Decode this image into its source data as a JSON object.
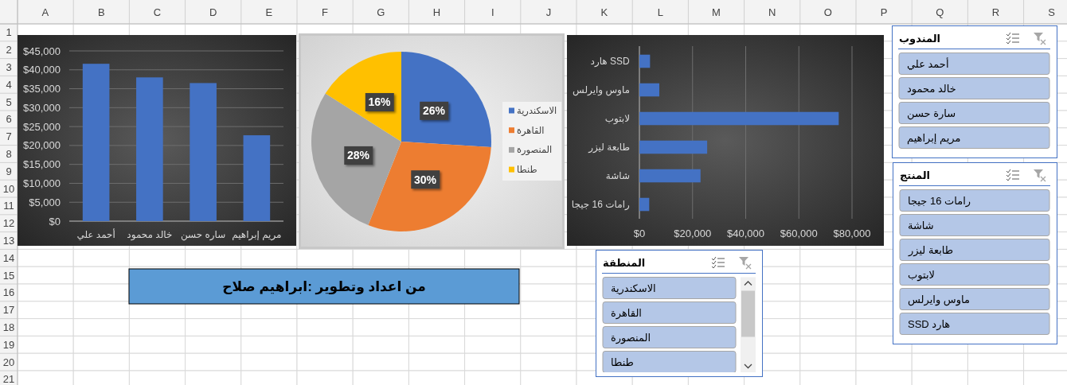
{
  "chart_data": [
    {
      "type": "heatmap",
      "categories": [
        "A",
        "B",
        "C",
        "D",
        "E",
        "F",
        "G",
        "H",
        "I",
        "J",
        "K",
        "L",
        "M",
        "N",
        "O",
        "P",
        "Q",
        "R",
        "S"
      ],
      "y_categories": [
        "1",
        "2",
        "3",
        "4",
        "5",
        "6",
        "7",
        "8",
        "9",
        "10",
        "11",
        "12",
        "13",
        "14",
        "15",
        "16",
        "17",
        "18",
        "19",
        "20",
        "21"
      ],
      "cells": [
        [
          null,
          null,
          null,
          null,
          null,
          null,
          null,
          null,
          null,
          null,
          null,
          null,
          null,
          null,
          null,
          null,
          null,
          null,
          null
        ],
        [
          null,
          null,
          null,
          null,
          null,
          null,
          null,
          null,
          null,
          null,
          null,
          null,
          null,
          null,
          null,
          null,
          null,
          null,
          null
        ],
        [
          null,
          null,
          null,
          null,
          null,
          null,
          null,
          null,
          null,
          null,
          null,
          null,
          null,
          null,
          null,
          null,
          null,
          null,
          null
        ],
        [
          null,
          null,
          null,
          null,
          null,
          null,
          null,
          null,
          null,
          null,
          null,
          null,
          null,
          null,
          null,
          null,
          null,
          null,
          null
        ],
        [
          null,
          null,
          null,
          null,
          null,
          null,
          null,
          null,
          null,
          null,
          null,
          null,
          null,
          null,
          null,
          null,
          null,
          null,
          null
        ],
        [
          null,
          null,
          null,
          null,
          null,
          null,
          null,
          null,
          null,
          null,
          null,
          null,
          null,
          null,
          null,
          null,
          null,
          null,
          null
        ],
        [
          null,
          null,
          null,
          null,
          null,
          null,
          null,
          null,
          null,
          null,
          null,
          null,
          null,
          null,
          null,
          null,
          null,
          null,
          null
        ],
        [
          null,
          null,
          null,
          null,
          null,
          null,
          null,
          null,
          null,
          null,
          null,
          null,
          null,
          null,
          null,
          null,
          null,
          null,
          null
        ],
        [
          null,
          null,
          null,
          null,
          null,
          null,
          null,
          null,
          null,
          null,
          null,
          null,
          null,
          null,
          null,
          null,
          null,
          null,
          null
        ],
        [
          null,
          null,
          null,
          null,
          null,
          null,
          null,
          null,
          null,
          null,
          null,
          null,
          null,
          null,
          null,
          null,
          null,
          null,
          null
        ],
        [
          null,
          null,
          null,
          null,
          null,
          null,
          null,
          null,
          null,
          null,
          null,
          null,
          null,
          null,
          null,
          null,
          null,
          null,
          null
        ],
        [
          null,
          null,
          null,
          null,
          null,
          null,
          null,
          null,
          null,
          null,
          null,
          null,
          null,
          null,
          null,
          null,
          null,
          null,
          null
        ],
        [
          null,
          null,
          null,
          null,
          null,
          null,
          null,
          null,
          null,
          null,
          null,
          null,
          null,
          null,
          null,
          null,
          null,
          null,
          null
        ],
        [
          null,
          null,
          null,
          null,
          null,
          null,
          null,
          null,
          null,
          null,
          null,
          null,
          null,
          null,
          null,
          null,
          null,
          null,
          null
        ],
        [
          null,
          null,
          null,
          null,
          null,
          null,
          null,
          null,
          null,
          null,
          null,
          null,
          null,
          null,
          null,
          null,
          null,
          null,
          null
        ],
        [
          null,
          null,
          null,
          null,
          null,
          null,
          null,
          null,
          null,
          null,
          null,
          null,
          null,
          null,
          null,
          null,
          null,
          null,
          null
        ],
        [
          null,
          null,
          null,
          null,
          null,
          null,
          null,
          null,
          null,
          null,
          null,
          null,
          null,
          null,
          null,
          null,
          null,
          null,
          null
        ],
        [
          null,
          null,
          null,
          null,
          null,
          null,
          null,
          null,
          null,
          null,
          null,
          null,
          null,
          null,
          null,
          null,
          null,
          null,
          null
        ],
        [
          null,
          null,
          null,
          null,
          null,
          null,
          null,
          null,
          null,
          null,
          null,
          null,
          null,
          null,
          null,
          null,
          null,
          null,
          null
        ],
        [
          null,
          null,
          null,
          null,
          null,
          null,
          null,
          null,
          null,
          null,
          null,
          null,
          null,
          null,
          null,
          null,
          null,
          null,
          null
        ],
        [
          null,
          null,
          null,
          null,
          null,
          null,
          null,
          null,
          null,
          null,
          null,
          null,
          null,
          null,
          null,
          null,
          null,
          null,
          null
        ]
      ],
      "annotations": [
        "من اعداد وتطوير :ابراهيم صلاح"
      ]
    },
    {
      "type": "bar",
      "categories": [
        "أحمد علي",
        "خالد محمود",
        "ساره حسن",
        "مريم إبراهيم"
      ],
      "values": [
        41600,
        38000,
        36500,
        22700
      ],
      "color": "#4472c4",
      "ylim": [
        0,
        45000
      ],
      "yticks": [
        {
          "value": 0,
          "label": "$0"
        },
        {
          "value": 5000,
          "label": "$5,000"
        },
        {
          "value": 10000,
          "label": "$10,000"
        },
        {
          "value": 15000,
          "label": "$15,000"
        },
        {
          "value": 20000,
          "label": "$20,000"
        },
        {
          "value": 25000,
          "label": "$25,000"
        },
        {
          "value": 30000,
          "label": "$30,000"
        },
        {
          "value": 35000,
          "label": "$35,000"
        },
        {
          "value": 40000,
          "label": "$40,000"
        },
        {
          "value": 45000,
          "label": "$45,000"
        }
      ],
      "grid": "y"
    },
    {
      "type": "pie",
      "categories": [
        "الاسكندرية",
        "القاهرة",
        "المنصورة",
        "طنطا"
      ],
      "values": [
        26,
        30,
        28,
        16
      ],
      "colors": [
        "#4472c4",
        "#ed7d31",
        "#a5a5a5",
        "#ffc000"
      ],
      "value_labels": [
        "26%",
        "30%",
        "28%",
        "16%"
      ],
      "legend": "right"
    },
    {
      "type": "bar",
      "orientation": "horizontal",
      "categories": [
        "هارد SSD",
        "ماوس وايرلس",
        "لابتوب",
        "طابعة ليزر",
        "شاشة",
        "رامات 16 جيجا"
      ],
      "values": [
        4000,
        7500,
        75000,
        25500,
        23000,
        3700
      ],
      "color": "#4472c4",
      "xlim": [
        0,
        80000
      ],
      "xticks": [
        {
          "value": 0,
          "label": "$0"
        },
        {
          "value": 20000,
          "label": "$20,000"
        },
        {
          "value": 40000,
          "label": "$40,000"
        },
        {
          "value": 60000,
          "label": "$60,000"
        },
        {
          "value": 80000,
          "label": "$80,000"
        }
      ],
      "grid": "x"
    },
    {
      "type": "other",
      "title": "المندوب",
      "annotations": [
        "أحمد علي",
        "خالد محمود",
        "سارة حسن",
        "مريم إبراهيم"
      ]
    },
    {
      "type": "other",
      "title": "المنتج",
      "annotations": [
        "رامات 16 جيجا",
        "شاشة",
        "طابعة ليزر",
        "لابتوب",
        "ماوس وايرلس",
        "هارد SSD"
      ]
    },
    {
      "type": "other",
      "title": "المنطقة",
      "annotations": [
        "الاسكندرية",
        "القاهرة",
        "المنصورة",
        "طنطا"
      ]
    }
  ]
}
